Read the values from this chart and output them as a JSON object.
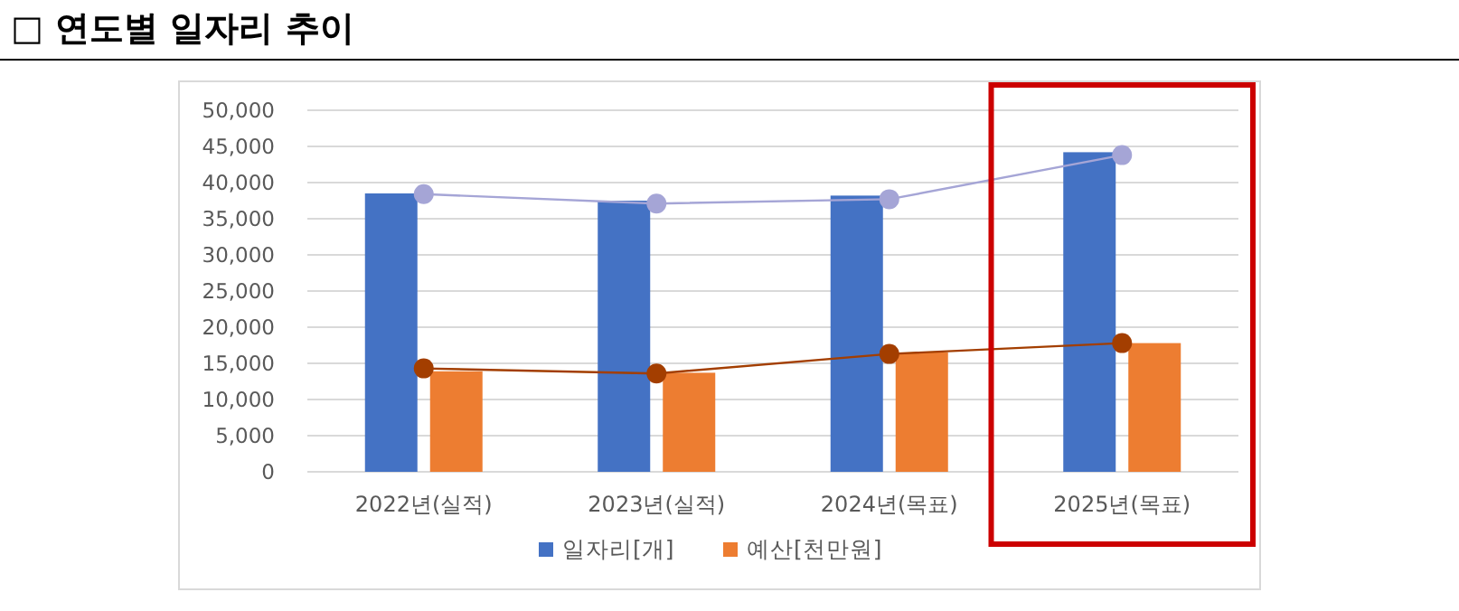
{
  "chart_data": {
    "type": "bar",
    "title": "□ 연도별 일자리 추이",
    "categories": [
      "2022년(실적)",
      "2023년(실적)",
      "2024년(목표)",
      "2025년(목표)"
    ],
    "series": [
      {
        "name": "일자리[개]",
        "color": "#4472c4",
        "values": [
          38500,
          37500,
          38200,
          44200
        ]
      },
      {
        "name": "예산[천만원]",
        "color": "#ed7d31",
        "values": [
          13900,
          13700,
          16500,
          17800
        ]
      },
      {
        "type": "line",
        "color": "#a5a5d6",
        "marker": "circle",
        "values": [
          38400,
          37100,
          37700,
          43800
        ]
      },
      {
        "type": "line",
        "color": "#a33e00",
        "marker": "circle",
        "values": [
          14300,
          13600,
          16300,
          17800
        ]
      }
    ],
    "ylim": [
      0,
      50000
    ],
    "yticks": [
      0,
      {
        "value": 5000,
        "label": "5,000"
      },
      {
        "value": 10000,
        "label": "10,000"
      },
      {
        "value": 15000,
        "label": "15,000"
      },
      {
        "value": 20000,
        "label": "20,000"
      },
      {
        "value": 25000,
        "label": "25,000"
      },
      {
        "value": 30000,
        "label": "30,000"
      },
      {
        "value": 35000,
        "label": "35,000"
      },
      {
        "value": 40000,
        "label": "40,000"
      },
      {
        "value": 45000,
        "label": "45,000"
      },
      {
        "value": 50000,
        "label": "50,000"
      }
    ],
    "grid": "y",
    "legend": "bottom"
  }
}
